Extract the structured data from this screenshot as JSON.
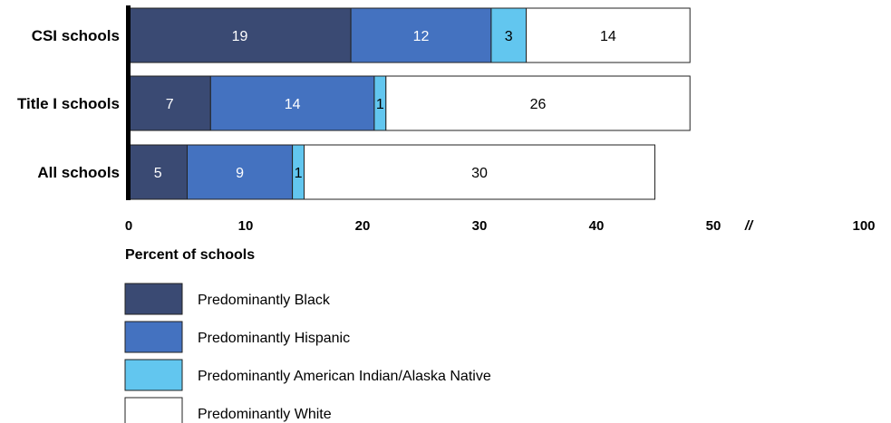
{
  "chart_data": {
    "type": "bar",
    "orientation": "horizontal",
    "stacked": true,
    "categories": [
      "CSI schools",
      "Title I schools",
      "All schools"
    ],
    "series": [
      {
        "name": "Predominantly Black",
        "values": [
          19,
          7,
          5
        ],
        "color": "#3a4a73",
        "label_color": "#ffffff"
      },
      {
        "name": "Predominantly Hispanic",
        "values": [
          12,
          14,
          9
        ],
        "color": "#4472c0",
        "label_color": "#ffffff"
      },
      {
        "name": "Predominantly American Indian/Alaska Native",
        "values": [
          3,
          1,
          1
        ],
        "color": "#62c6ef",
        "label_color": "#000000"
      },
      {
        "name": "Predominantly White",
        "values": [
          14,
          26,
          30
        ],
        "color": "#ffffff",
        "label_color": "#000000"
      }
    ],
    "x_ticks": [
      "0",
      "10",
      "20",
      "30",
      "40",
      "50",
      "100"
    ],
    "axis_break_symbol": "//",
    "xlabel": "Percent of schools",
    "xlim": [
      0,
      100
    ],
    "legend_position": "bottom-left"
  }
}
